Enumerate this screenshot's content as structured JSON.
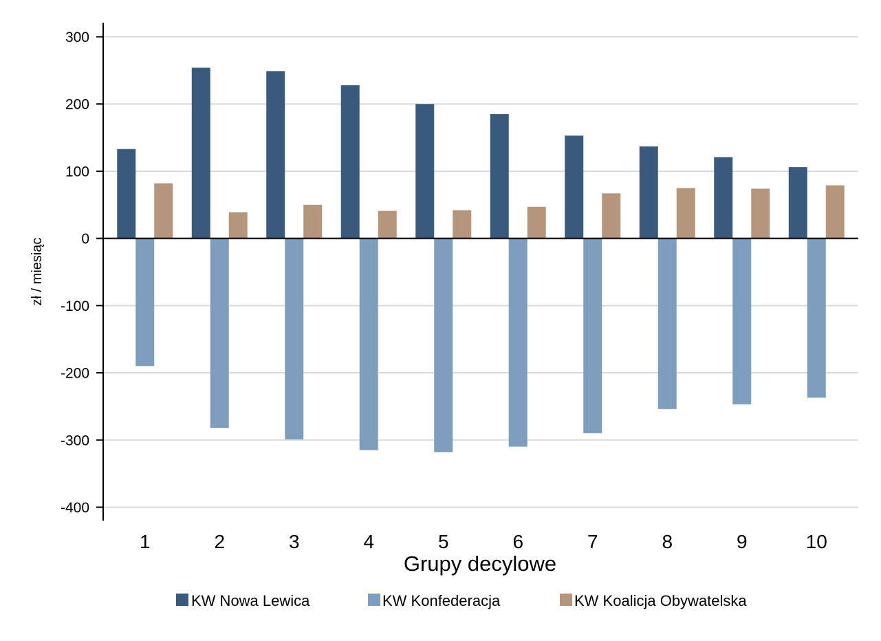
{
  "chart_data": {
    "type": "bar",
    "categories": [
      "1",
      "2",
      "3",
      "4",
      "5",
      "6",
      "7",
      "8",
      "9",
      "10"
    ],
    "series": [
      {
        "name": "KW Nowa Lewica",
        "color": "#3a5a7d",
        "values": [
          133,
          254,
          249,
          228,
          200,
          185,
          153,
          137,
          121,
          106
        ]
      },
      {
        "name": "KW Konfederacja",
        "color": "#7f9ebe",
        "values": [
          -190,
          -282,
          -299,
          -315,
          -318,
          -310,
          -290,
          -254,
          -247,
          -237
        ]
      },
      {
        "name": "KW Koalicja Obywatelska",
        "color": "#b5957b",
        "values": [
          82,
          39,
          50,
          41,
          42,
          47,
          67,
          75,
          74,
          79
        ]
      }
    ],
    "xlabel": "Grupy decylowe",
    "ylabel": "zł / miesiąc",
    "ylim": [
      -420,
      320
    ],
    "yticks": [
      300,
      200,
      100,
      0,
      -100,
      -200,
      -300,
      -400
    ],
    "grid": true,
    "legend": "bottom",
    "gridline_color": "#d9d9d9",
    "axis_color": "#000000"
  }
}
